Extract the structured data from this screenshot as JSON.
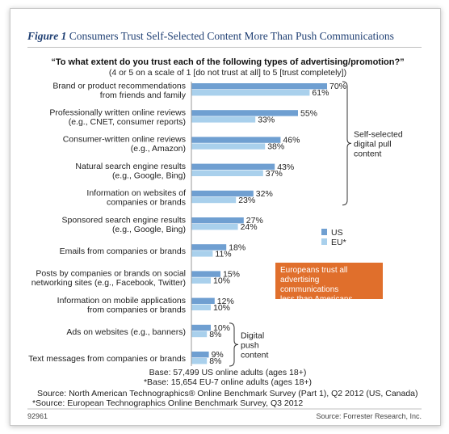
{
  "figure": {
    "label": "Figure 1",
    "title": "Consumers Trust Self-Selected Content More Than Push Communications"
  },
  "chart_data": {
    "type": "bar",
    "orientation": "horizontal",
    "question": "“To what extent do you trust each of the following types of advertising/promotion?”",
    "subtitle": "(4 or 5 on a scale of 1 [do not trust at all] to 5 [trust completely])",
    "categories": [
      [
        "Brand or product recommendations",
        "from friends and family"
      ],
      [
        "Professionally written online reviews",
        "(e.g., CNET, consumer reports)"
      ],
      [
        "Consumer-written online reviews",
        "(e.g., Amazon)"
      ],
      [
        "Natural search engine results",
        "(e.g., Google, Bing)"
      ],
      [
        "Information on websites of",
        "companies or brands"
      ],
      [
        "Sponsored search engine results",
        "(e.g., Google, Bing)"
      ],
      [
        "Emails from companies or brands"
      ],
      [
        "Posts by companies or brands on social",
        "networking sites (e.g., Facebook, Twitter)"
      ],
      [
        "Information on mobile applications",
        "from companies or brands"
      ],
      [
        "Ads on websites (e.g., banners)"
      ],
      [
        "Text messages from companies or brands"
      ]
    ],
    "series": [
      {
        "name": "US",
        "color": "#6f9fd1",
        "values": [
          70,
          55,
          46,
          43,
          32,
          27,
          18,
          15,
          12,
          10,
          9
        ]
      },
      {
        "name": "EU*",
        "color": "#a9d0ec",
        "values": [
          61,
          33,
          38,
          37,
          23,
          24,
          11,
          10,
          10,
          8,
          8
        ]
      }
    ],
    "value_suffix": "%",
    "xlim": [
      0,
      100
    ],
    "legend_position": "right",
    "groups": [
      {
        "label": [
          "Self-selected",
          "digital pull",
          "content"
        ],
        "from": 0,
        "to": 4
      },
      {
        "label": [
          "Digital",
          "push",
          "content"
        ],
        "from": 9,
        "to": 10
      }
    ]
  },
  "callout": "Europeans trust all\nadvertising communications\nless than Americans.",
  "base_notes": [
    "Base: 57,499 US online adults (ages 18+)",
    "*Base: 15,654 EU-7 online adults (ages 18+)"
  ],
  "sources": [
    "Source: North American Technographics® Online Benchmark Survey (Part 1), Q2 2012 (US, Canada)",
    "*Source: European Technographics Online Benchmark Survey, Q3 2012"
  ],
  "footer": {
    "id": "92961",
    "source": "Source: Forrester Research, Inc."
  }
}
